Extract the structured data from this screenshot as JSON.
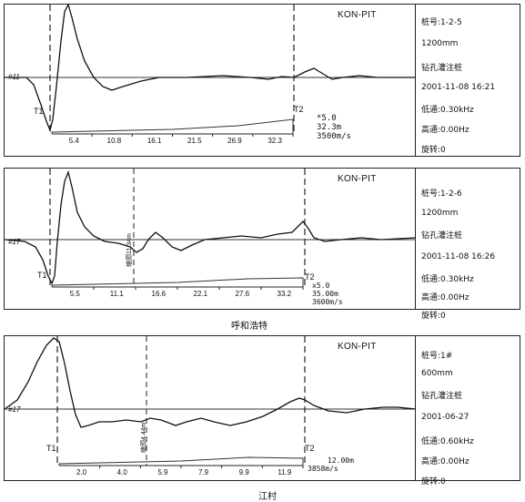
{
  "chart_data": [
    {
      "type": "line",
      "logo": "KON-PIT",
      "channel": "#11",
      "t1_label": "T1",
      "t2_label": "T2",
      "extra_marker": "",
      "readout": [
        "*5.0",
        "32.3m",
        "3500m/s"
      ],
      "x_ticks": [
        "5.4",
        "10.8",
        "16.1",
        "21.5",
        "26.9",
        "32.3"
      ],
      "info": [
        "桩号:1-2-5",
        "1200mm",
        "钻孔灌注桩",
        "2001-11-08 16:21",
        "低通:0.30kHz",
        "高通:0.00Hz",
        "旋转:0"
      ],
      "caption": ""
    },
    {
      "type": "line",
      "logo": "KON-PIT",
      "channel": "#17",
      "t1_label": "T1",
      "t2_label": "T2",
      "extra_marker": "缩颈11.34m",
      "readout": [
        "x5.0",
        "35.00m",
        "3600m/s"
      ],
      "x_ticks": [
        "5.5",
        "11.1",
        "16.6",
        "22.1",
        "27.6",
        "33.2"
      ],
      "info": [
        "桩号:1-2-6",
        "1200mm",
        "钻孔灌注桩",
        "2001-11-08 16:26",
        "低通:0.30kHz",
        "高通:0.00Hz",
        "旋转:0"
      ],
      "caption": "呼和浩特"
    },
    {
      "type": "line",
      "logo": "KON-PIT",
      "channel": "#17",
      "t1_label": "T1",
      "t2_label": "T2",
      "extra_marker": "缩颈4.44m",
      "readout": [
        "12.00m",
        "3858m/s"
      ],
      "x_ticks": [
        "2.0",
        "4.0",
        "5.9",
        "7.9",
        "9.9",
        "11.9"
      ],
      "info": [
        "桩号:1#",
        "600mm",
        "钻孔灌注桩",
        "2001-06-27",
        "低通:0.60kHz",
        "高通:0.00Hz",
        "旋转:0"
      ],
      "caption": "江村"
    }
  ]
}
